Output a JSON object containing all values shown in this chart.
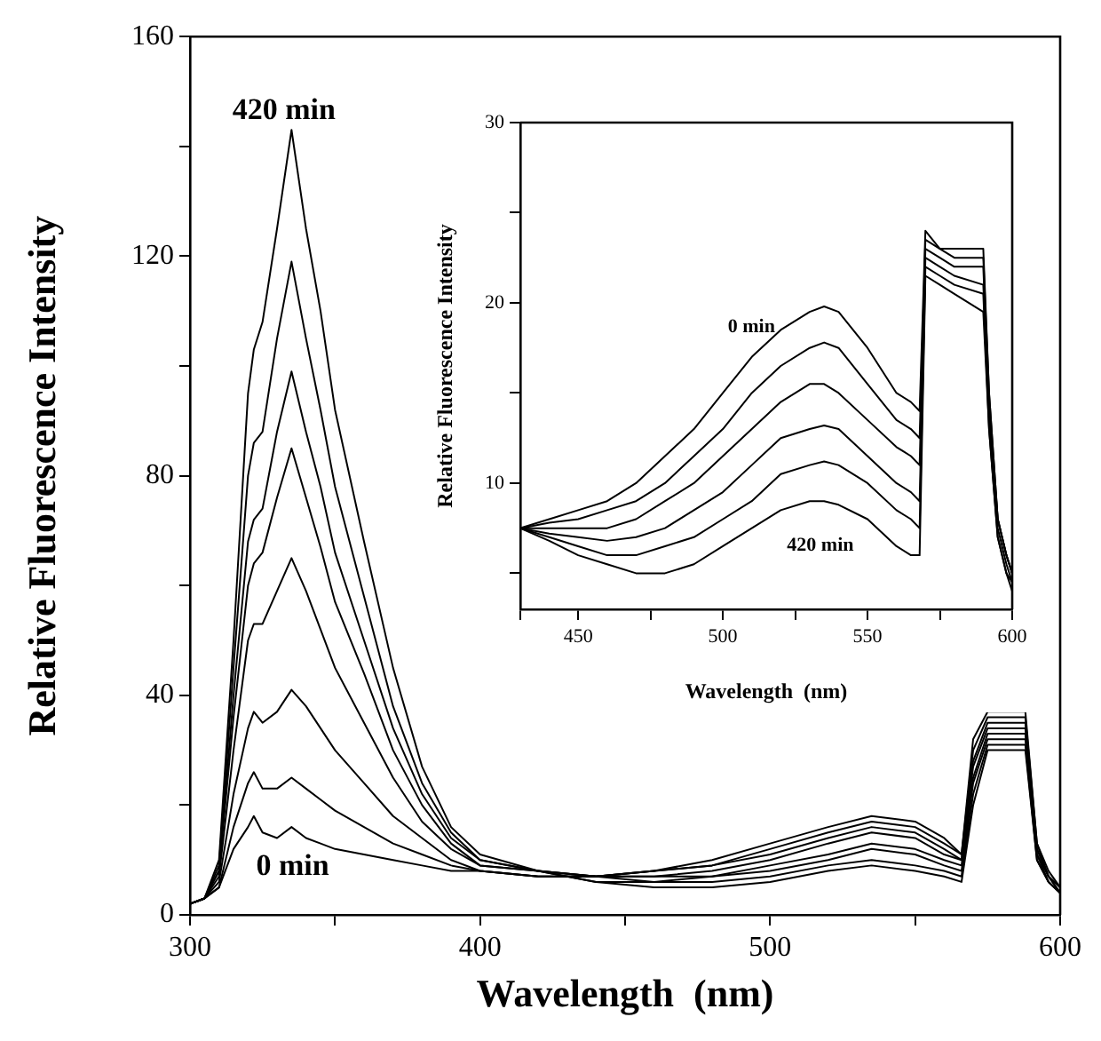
{
  "chart_data": [
    {
      "type": "line",
      "xlabel": "Wavelength  (nm)",
      "ylabel": "Relative Fluorescence Intensity",
      "x": [
        300,
        305,
        310,
        315,
        320,
        322,
        325,
        330,
        335,
        340,
        345,
        350,
        360,
        370,
        380,
        390,
        400,
        420,
        440,
        460,
        480,
        500,
        520,
        535,
        550,
        560,
        566,
        570,
        575,
        588,
        592,
        596,
        600
      ],
      "series": [
        {
          "color": "#000000",
          "values": [
            2,
            3,
            5,
            12,
            16,
            18,
            15,
            14,
            16,
            14,
            13,
            12,
            11,
            10,
            9,
            8,
            8,
            7,
            7,
            8,
            10,
            13,
            16,
            18,
            17,
            14,
            11,
            32,
            37,
            37,
            13,
            8,
            5
          ]
        },
        {
          "color": "#000000",
          "values": [
            2,
            3,
            5,
            16,
            24,
            26,
            23,
            23,
            25,
            23,
            21,
            19,
            16,
            13,
            11,
            9,
            8,
            7,
            7,
            8,
            9,
            12,
            15,
            17,
            16,
            13,
            11,
            30,
            36,
            36,
            13,
            7,
            5
          ]
        },
        {
          "color": "#000000",
          "values": [
            2,
            3,
            6,
            22,
            34,
            37,
            35,
            37,
            41,
            38,
            34,
            30,
            24,
            18,
            14,
            10,
            8,
            7,
            7,
            8,
            9,
            11,
            14,
            16,
            15,
            12,
            10,
            28,
            35,
            35,
            12,
            7,
            5
          ]
        },
        {
          "color": "#000000",
          "values": [
            2,
            3,
            7,
            30,
            50,
            53,
            53,
            59,
            65,
            59,
            52,
            45,
            35,
            25,
            17,
            12,
            9,
            8,
            7,
            7,
            8,
            10,
            13,
            15,
            14,
            11,
            10,
            27,
            34,
            34,
            12,
            7,
            4
          ]
        },
        {
          "color": "#000000",
          "values": [
            2,
            3,
            8,
            36,
            60,
            64,
            66,
            76,
            85,
            76,
            67,
            57,
            44,
            30,
            20,
            13,
            9,
            8,
            7,
            7,
            7,
            9,
            11,
            13,
            12,
            10,
            9,
            25,
            33,
            33,
            11,
            7,
            4
          ]
        },
        {
          "color": "#000000",
          "values": [
            2,
            3,
            8,
            40,
            68,
            72,
            74,
            88,
            99,
            88,
            78,
            66,
            50,
            34,
            22,
            14,
            10,
            8,
            7,
            6,
            7,
            8,
            10,
            12,
            11,
            9,
            8,
            24,
            32,
            32,
            11,
            6,
            4
          ]
        },
        {
          "color": "#000000",
          "values": [
            2,
            3,
            9,
            45,
            80,
            86,
            88,
            105,
            119,
            105,
            92,
            78,
            58,
            38,
            24,
            15,
            10,
            8,
            6,
            6,
            6,
            7,
            9,
            10,
            9,
            8,
            7,
            22,
            31,
            31,
            10,
            6,
            4
          ]
        },
        {
          "color": "#000000",
          "values": [
            2,
            3,
            10,
            50,
            95,
            103,
            108,
            125,
            143,
            125,
            110,
            92,
            68,
            45,
            27,
            16,
            11,
            8,
            6,
            5,
            5,
            6,
            8,
            9,
            8,
            7,
            6,
            20,
            30,
            30,
            10,
            6,
            4
          ]
        }
      ],
      "xlim": [
        300,
        600
      ],
      "xticks": [
        300,
        {
          "value": 350,
          "label": null
        },
        400,
        {
          "value": 450,
          "label": null
        },
        500,
        {
          "value": 550,
          "label": null
        },
        600
      ],
      "ylim": [
        0,
        160
      ],
      "yticks": [
        0,
        {
          "value": 20,
          "label": null
        },
        40,
        {
          "value": 60,
          "label": null
        },
        80,
        {
          "value": 100,
          "label": null
        },
        120,
        {
          "value": 140,
          "label": null
        },
        160
      ],
      "annotations": [
        "420 min",
        "0 min"
      ],
      "grid": false,
      "legend": false,
      "marker": "none",
      "line_style": "solid"
    },
    {
      "type": "line",
      "xlabel": "Wavelength  (nm)",
      "ylabel": "Relative Fluorescence Intensity",
      "x": [
        430,
        440,
        450,
        460,
        470,
        480,
        490,
        500,
        510,
        520,
        530,
        535,
        540,
        550,
        560,
        565,
        568,
        570,
        575,
        580,
        590,
        592,
        595,
        598,
        600
      ],
      "series": [
        {
          "color": "#000000",
          "values": [
            7.5,
            8,
            8.5,
            9,
            10,
            11.5,
            13,
            15,
            17,
            18.5,
            19.5,
            19.8,
            19.5,
            17.5,
            15,
            14.5,
            14,
            24,
            23,
            23,
            23,
            15,
            8,
            6,
            5
          ]
        },
        {
          "color": "#000000",
          "values": [
            7.5,
            7.8,
            8,
            8.5,
            9,
            10,
            11.5,
            13,
            15,
            16.5,
            17.5,
            17.8,
            17.5,
            15.5,
            13.5,
            13,
            12.5,
            23.5,
            23,
            22.5,
            22.5,
            15,
            8,
            6,
            5
          ]
        },
        {
          "color": "#000000",
          "values": [
            7.5,
            7.5,
            7.5,
            7.5,
            8,
            9,
            10,
            11.5,
            13,
            14.5,
            15.5,
            15.5,
            15,
            13.5,
            12,
            11.5,
            11,
            23,
            22.5,
            22,
            22,
            14,
            8,
            6,
            5
          ]
        },
        {
          "color": "#000000",
          "values": [
            7.5,
            7.2,
            7,
            6.8,
            7,
            7.5,
            8.5,
            9.5,
            11,
            12.5,
            13,
            13.2,
            13,
            11.5,
            10,
            9.5,
            9,
            22.5,
            22,
            21.5,
            21,
            14,
            7.5,
            5.5,
            4.5
          ]
        },
        {
          "color": "#000000",
          "values": [
            7.5,
            7,
            6.5,
            6,
            6,
            6.5,
            7,
            8,
            9,
            10.5,
            11,
            11.2,
            11,
            10,
            8.5,
            8,
            7.5,
            22,
            21.5,
            21,
            20.5,
            13,
            7,
            5,
            4.5
          ]
        },
        {
          "color": "#000000",
          "values": [
            7.5,
            6.8,
            6,
            5.5,
            5,
            5,
            5.5,
            6.5,
            7.5,
            8.5,
            9,
            9,
            8.8,
            8,
            6.5,
            6,
            6,
            21.5,
            21,
            20.5,
            19.5,
            13,
            7,
            5,
            4
          ]
        }
      ],
      "xlim": [
        430,
        600
      ],
      "xticks": [
        {
          "value": 430,
          "label": null
        },
        450,
        {
          "value": 475,
          "label": null
        },
        500,
        {
          "value": 525,
          "label": null
        },
        550,
        {
          "value": 575,
          "label": null
        },
        600
      ],
      "ylim": [
        3,
        30
      ],
      "yticks": [
        {
          "value": 5,
          "label": null
        },
        10,
        {
          "value": 15,
          "label": null
        },
        20,
        {
          "value": 25,
          "label": null
        },
        30
      ],
      "annotations": [
        "0 min",
        "420 min"
      ],
      "grid": false,
      "legend": false,
      "marker": "none",
      "line_style": "solid"
    }
  ]
}
